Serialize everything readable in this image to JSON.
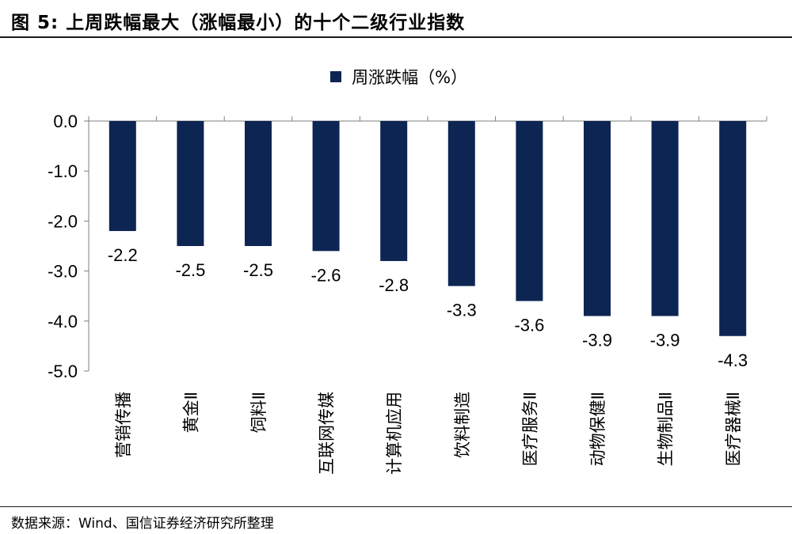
{
  "header": {
    "title": "图  5:  上周跌幅最大（涨幅最小）的十个二级行业指数"
  },
  "footer": {
    "source": "数据来源：Wind、国信证券经济研究所整理"
  },
  "colors": {
    "bar": "#0d2553",
    "axis": "#7f7f7f"
  },
  "chart_data": {
    "type": "bar",
    "categories": [
      "营销传播",
      "黄金Ⅱ",
      "饲料Ⅱ",
      "互联网传媒",
      "计算机应用",
      "饮料制造",
      "医疗服务Ⅱ",
      "动物保健Ⅱ",
      "生物制品Ⅱ",
      "医疗器械Ⅱ"
    ],
    "series": [
      {
        "name": "周涨跌幅（%）",
        "values": [
          -2.2,
          -2.5,
          -2.5,
          -2.6,
          -2.8,
          -3.3,
          -3.6,
          -3.9,
          -3.9,
          -4.3
        ]
      }
    ],
    "data_labels": [
      "-2.2",
      "-2.5",
      "-2.5",
      "-2.6",
      "-2.8",
      "-3.3",
      "-3.6",
      "-3.9",
      "-3.9",
      "-4.3"
    ],
    "yticks": [
      "0.0",
      "-1.0",
      "-2.0",
      "-3.0",
      "-4.0",
      "-5.0"
    ],
    "ylim": [
      -5,
      0
    ],
    "grid": false,
    "legend_position": "top-center"
  }
}
